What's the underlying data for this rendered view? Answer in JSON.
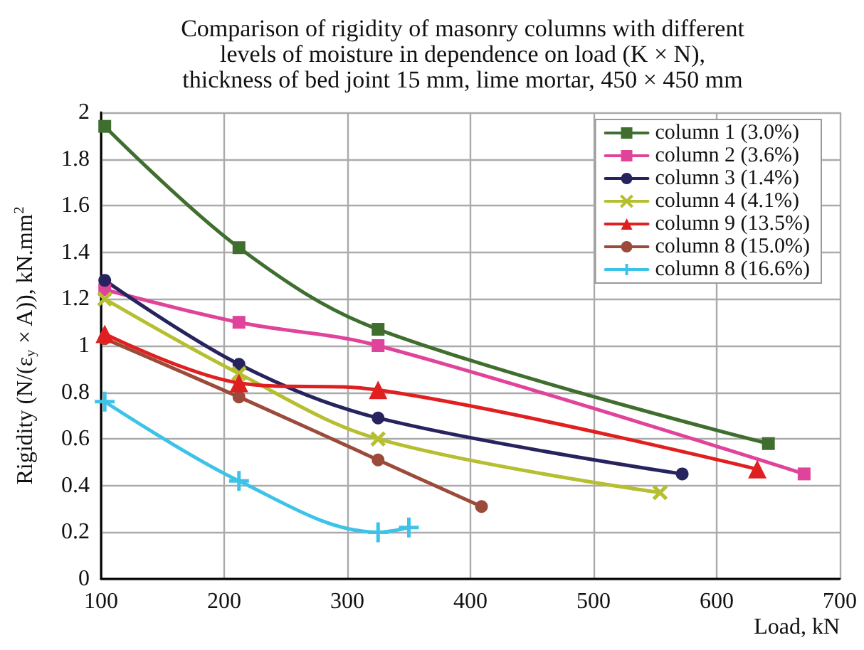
{
  "chart_data": {
    "type": "line",
    "title": "Comparison of rigidity of masonry columns with different\nlevels of moisture in dependence on load (K × N),\nthickness of bed joint 15 mm, lime mortar, 450 × 450 mm",
    "xlabel": "Load, kN",
    "ylabel": "Rigidity (N/(ε$_{y}$ × A)), kN.mm$^{2}$",
    "xlim": [
      100,
      700
    ],
    "xticks": [
      100,
      200,
      300,
      400,
      500,
      600,
      700
    ],
    "ylim": [
      0,
      2
    ],
    "yticks": [
      0,
      0.2,
      0.4,
      0.6,
      0.8,
      1,
      1.2,
      1.4,
      1.6,
      1.8,
      2
    ],
    "grid": true,
    "legend": "top right",
    "line_style": "solid",
    "series": [
      {
        "name": "column 1 (3.0%)",
        "color": "#3f6e2f",
        "marker": "square",
        "x": [
          103,
          212,
          325,
          642
        ],
        "values": [
          1.94,
          1.42,
          1.07,
          0.58
        ]
      },
      {
        "name": "column 2 (3.6%)",
        "color": "#e0449a",
        "marker": "square",
        "x": [
          103,
          212,
          325,
          671
        ],
        "values": [
          1.24,
          1.1,
          1.0,
          0.45
        ]
      },
      {
        "name": "column 3 (1.4%)",
        "color": "#27235e",
        "marker": "circle",
        "x": [
          103,
          212,
          325,
          572
        ],
        "values": [
          1.28,
          0.92,
          0.69,
          0.45
        ]
      },
      {
        "name": "column 4 (4.1%)",
        "color": "#b5bf2f",
        "marker": "cross",
        "x": [
          103,
          212,
          325,
          554
        ],
        "values": [
          1.2,
          0.88,
          0.6,
          0.37
        ]
      },
      {
        "name": "column 9 (13.5%)",
        "color": "#e02020",
        "marker": "triangle",
        "x": [
          103,
          212,
          325,
          633
        ],
        "values": [
          1.05,
          0.84,
          0.81,
          0.47
        ]
      },
      {
        "name": "column 8 (15.0%)",
        "color": "#9c4a3a",
        "marker": "circle",
        "x": [
          103,
          212,
          325,
          409
        ],
        "values": [
          1.03,
          0.78,
          0.51,
          0.31
        ]
      },
      {
        "name": "column 8 (16.6%)",
        "color": "#3ec3e8",
        "marker": "cross",
        "x": [
          103,
          212,
          325,
          350
        ],
        "values": [
          0.76,
          0.42,
          0.2,
          0.22
        ]
      }
    ]
  }
}
